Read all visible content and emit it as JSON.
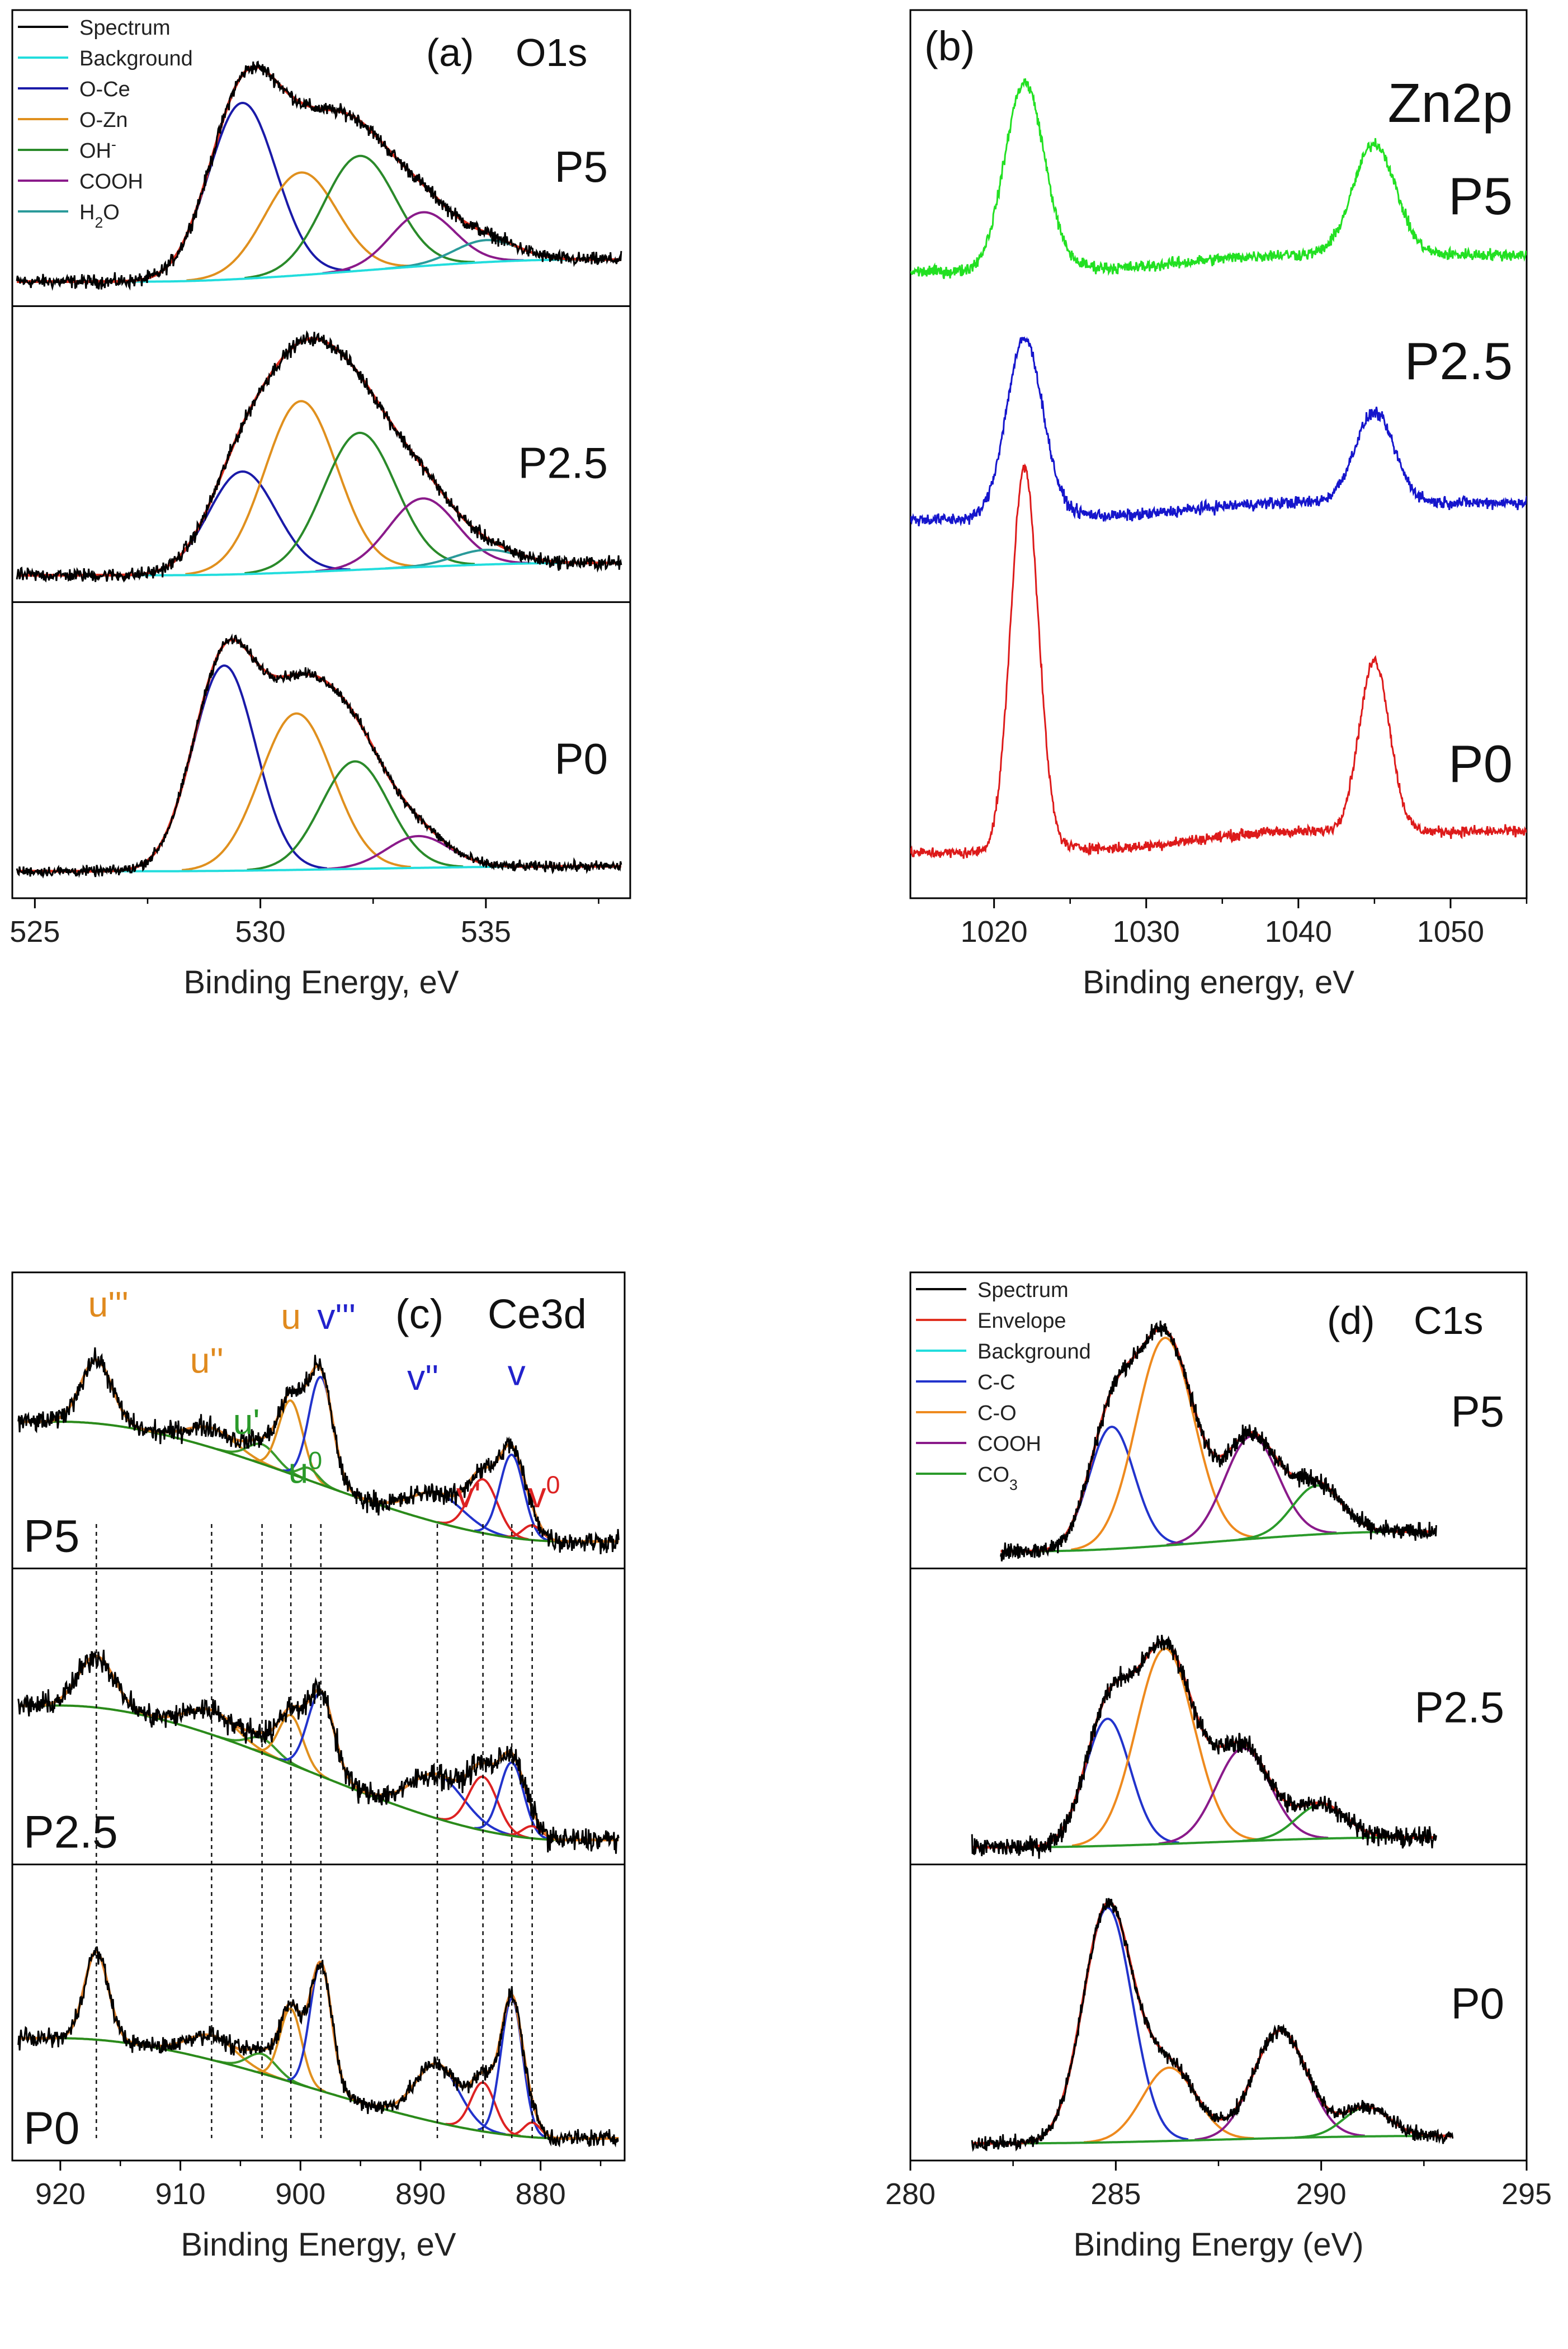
{
  "panels": [
    {
      "id": "a",
      "label": "(a)",
      "element": "O1s",
      "xlabel": "Binding Energy, eV",
      "xlim": [
        524.5,
        538.2
      ],
      "x_reversed": false,
      "ticks": [
        525,
        530,
        535
      ],
      "sub_ylim": [
        0,
        1.12
      ],
      "legend": [
        "Spectrum",
        "Background",
        "O-Ce",
        "O-Zn",
        "OH-",
        "COOH",
        "H2O"
      ],
      "subplots": [
        {
          "sample": "P5",
          "x_range": [
            524.6,
            538.0
          ],
          "noise": 0.02,
          "spectrum": "sum",
          "background": {
            "left": 0.05,
            "right": 0.14,
            "x1": 527.5,
            "x2": 537.0
          },
          "components": [
            {
              "name": "O-Ce",
              "center": 529.6,
              "height": 0.72,
              "width": 0.75
            },
            {
              "name": "O-Zn",
              "center": 530.9,
              "height": 0.42,
              "width": 0.8
            },
            {
              "name": "OH-",
              "center": 532.2,
              "height": 0.47,
              "width": 0.8
            },
            {
              "name": "COOH",
              "center": 533.6,
              "height": 0.22,
              "width": 0.7
            },
            {
              "name": "H2O",
              "center": 535.0,
              "height": 0.09,
              "width": 0.7
            }
          ]
        },
        {
          "sample": "P2.5",
          "x_range": [
            524.6,
            538.0
          ],
          "noise": 0.02,
          "spectrum": "sum",
          "background": {
            "left": 0.06,
            "right": 0.11,
            "x1": 528.0,
            "x2": 537.0
          },
          "components": [
            {
              "name": "O-Ce",
              "center": 529.6,
              "height": 0.42,
              "width": 0.75
            },
            {
              "name": "O-Zn",
              "center": 530.9,
              "height": 0.7,
              "width": 0.8
            },
            {
              "name": "OH-",
              "center": 532.2,
              "height": 0.56,
              "width": 0.8
            },
            {
              "name": "COOH",
              "center": 533.6,
              "height": 0.28,
              "width": 0.75
            },
            {
              "name": "H2O",
              "center": 535.0,
              "height": 0.06,
              "width": 0.7
            }
          ]
        },
        {
          "sample": "P0",
          "x_range": [
            524.6,
            538.0
          ],
          "noise": 0.015,
          "spectrum": "sum",
          "background": {
            "left": 0.06,
            "right": 0.08,
            "x1": 527.5,
            "x2": 537.0
          },
          "components": [
            {
              "name": "O-Ce",
              "center": 529.2,
              "height": 0.84,
              "width": 0.7
            },
            {
              "name": "O-Zn",
              "center": 530.8,
              "height": 0.64,
              "width": 0.8
            },
            {
              "name": "OH-",
              "center": 532.1,
              "height": 0.44,
              "width": 0.75
            },
            {
              "name": "COOH",
              "center": 533.5,
              "height": 0.13,
              "width": 0.7
            }
          ]
        }
      ]
    },
    {
      "id": "b",
      "label": "(b)",
      "element": "Zn2p",
      "xlabel": "Binding energy, eV",
      "xlim": [
        1014.5,
        1055
      ],
      "x_reversed": false,
      "ticks": [
        1020,
        1030,
        1040,
        1050
      ],
      "stack_ylim": [
        0,
        100
      ],
      "legend": [],
      "traces": [
        {
          "sample": "P5",
          "color": "#22e022",
          "baseline": 72,
          "peaks": [
            {
              "center": 1022.0,
              "height": 22,
              "width": 1.3
            },
            {
              "center": 1045.0,
              "height": 13,
              "width": 1.4
            }
          ],
          "noise": 0.5,
          "bg_slope": 2.0
        },
        {
          "sample": "P2.5",
          "color": "#1515cc",
          "baseline": 43,
          "peaks": [
            {
              "center": 1022.0,
              "height": 21,
              "width": 1.2
            },
            {
              "center": 1045.0,
              "height": 10.5,
              "width": 1.3
            }
          ],
          "noise": 0.5,
          "bg_slope": 2.0
        },
        {
          "sample": "P0",
          "color": "#dd1a1a",
          "baseline": 4,
          "peaks": [
            {
              "center": 1022.0,
              "height": 45,
              "width": 0.9
            },
            {
              "center": 1045.0,
              "height": 20,
              "width": 1.0
            }
          ],
          "noise": 0.45,
          "bg_slope": 2.5
        }
      ]
    },
    {
      "id": "c",
      "label": "(c)",
      "element": "Ce3d",
      "xlabel": "Binding Energy, eV",
      "xlim": [
        924,
        873
      ],
      "x_reversed": true,
      "ticks": [
        920,
        910,
        900,
        890,
        880
      ],
      "sub_ylim": [
        0,
        1.12
      ],
      "legend": [],
      "dashed_lines": [
        917.0,
        907.4,
        903.2,
        900.8,
        898.3,
        888.6,
        884.8,
        882.4,
        880.7
      ],
      "peak_labels": [
        {
          "text": "u'''",
          "x": 916.0,
          "y": 0.98,
          "color": "#e08a1e"
        },
        {
          "text": "u''",
          "x": 907.8,
          "y": 0.75,
          "color": "#e08a1e"
        },
        {
          "text": "u",
          "x": 900.8,
          "y": 0.93,
          "color": "#e08a1e"
        },
        {
          "text": "v'''",
          "x": 897.0,
          "y": 0.93,
          "color": "#2222cc"
        },
        {
          "text": "u'",
          "x": 904.5,
          "y": 0.5,
          "color": "#2a9a2a"
        },
        {
          "text": "u0",
          "x": 899.6,
          "y": 0.3,
          "color": "#2a9a2a"
        },
        {
          "text": "v''",
          "x": 889.8,
          "y": 0.68,
          "color": "#2222cc"
        },
        {
          "text": "v",
          "x": 882.0,
          "y": 0.7,
          "color": "#2222cc"
        },
        {
          "text": "v'",
          "x": 886.0,
          "y": 0.2,
          "color": "#dd2222"
        },
        {
          "text": "v0",
          "x": 879.7,
          "y": 0.2,
          "color": "#dd2222"
        }
      ],
      "subplots": [
        {
          "sample": "P5",
          "x_range": [
            923.5,
            873.5
          ],
          "noise": 0.03,
          "spectrum": "sum",
          "background": {
            "left": 0.55,
            "right": 0.06,
            "x1": 920.0,
            "x2": 878.0
          },
          "components": [
            {
              "name": "u'''",
              "center": 917.0,
              "height": 0.26,
              "width": 1.3
            },
            {
              "name": "u''",
              "center": 907.4,
              "height": 0.08,
              "width": 2.0
            },
            {
              "name": "u'",
              "center": 903.2,
              "height": 0.08,
              "width": 1.2
            },
            {
              "name": "u",
              "center": 900.8,
              "height": 0.3,
              "width": 1.0
            },
            {
              "name": "u0",
              "center": 899.3,
              "height": 0.05,
              "width": 0.8
            },
            {
              "name": "v'''",
              "center": 898.3,
              "height": 0.44,
              "width": 1.0
            },
            {
              "name": "v''",
              "center": 888.6,
              "height": 0.12,
              "width": 2.2
            },
            {
              "name": "v'",
              "center": 884.8,
              "height": 0.22,
              "width": 1.2
            },
            {
              "name": "v",
              "center": 882.4,
              "height": 0.34,
              "width": 1.0
            },
            {
              "name": "v0",
              "center": 880.7,
              "height": 0.06,
              "width": 0.8
            }
          ]
        },
        {
          "sample": "P2.5",
          "x_range": [
            923.5,
            873.5
          ],
          "noise": 0.035,
          "spectrum": "sum",
          "background": {
            "left": 0.6,
            "right": 0.05,
            "x1": 920.0,
            "x2": 878.0
          },
          "components": [
            {
              "name": "u'''",
              "center": 917.0,
              "height": 0.21,
              "width": 1.5
            },
            {
              "name": "u''",
              "center": 907.4,
              "height": 0.1,
              "width": 2.0
            },
            {
              "name": "u'",
              "center": 903.2,
              "height": 0.06,
              "width": 1.2
            },
            {
              "name": "u",
              "center": 900.8,
              "height": 0.2,
              "width": 1.0
            },
            {
              "name": "v'''",
              "center": 898.3,
              "height": 0.34,
              "width": 1.1
            },
            {
              "name": "v''",
              "center": 888.6,
              "height": 0.18,
              "width": 2.2
            },
            {
              "name": "v'",
              "center": 884.8,
              "height": 0.22,
              "width": 1.2
            },
            {
              "name": "v",
              "center": 882.4,
              "height": 0.3,
              "width": 1.0
            },
            {
              "name": "v0",
              "center": 880.7,
              "height": 0.05,
              "width": 0.8
            }
          ]
        },
        {
          "sample": "P0",
          "x_range": [
            923.5,
            873.5
          ],
          "noise": 0.025,
          "spectrum": "sum",
          "background": {
            "left": 0.45,
            "right": 0.04,
            "x1": 920.0,
            "x2": 878.0
          },
          "components": [
            {
              "name": "u'''",
              "center": 917.0,
              "height": 0.36,
              "width": 1.0
            },
            {
              "name": "u''",
              "center": 907.4,
              "height": 0.1,
              "width": 2.0
            },
            {
              "name": "u'",
              "center": 903.2,
              "height": 0.08,
              "width": 1.2
            },
            {
              "name": "u",
              "center": 900.8,
              "height": 0.3,
              "width": 0.9
            },
            {
              "name": "v'''",
              "center": 898.3,
              "height": 0.52,
              "width": 0.9
            },
            {
              "name": "v''",
              "center": 888.6,
              "height": 0.24,
              "width": 1.8
            },
            {
              "name": "v'",
              "center": 884.8,
              "height": 0.2,
              "width": 1.0
            },
            {
              "name": "v",
              "center": 882.4,
              "height": 0.56,
              "width": 0.9
            },
            {
              "name": "v0",
              "center": 880.7,
              "height": 0.06,
              "width": 0.7
            }
          ]
        }
      ]
    },
    {
      "id": "d",
      "label": "(d)",
      "element": "C1s",
      "xlabel": "Binding Energy (eV)",
      "xlim": [
        280,
        295
      ],
      "x_reversed": false,
      "ticks": [
        280,
        285,
        290,
        295
      ],
      "sub_ylim": [
        0,
        1.12
      ],
      "legend": [
        "Spectrum",
        "Envelope",
        "Background",
        "C-C",
        "C-O",
        "COOH",
        "CO3"
      ],
      "subplots": [
        {
          "sample": "P5",
          "x_range": [
            282.2,
            292.8
          ],
          "noise": 0.025,
          "spectrum": "sum",
          "background": {
            "left": 0.02,
            "right": 0.1,
            "x1": 283.0,
            "x2": 292.0
          },
          "components": [
            {
              "name": "C-C",
              "center": 284.9,
              "height": 0.5,
              "width": 0.55
            },
            {
              "name": "C-O",
              "center": 286.2,
              "height": 0.85,
              "width": 0.7
            },
            {
              "name": "COOH",
              "center": 288.3,
              "height": 0.42,
              "width": 0.65
            },
            {
              "name": "CO3",
              "center": 289.9,
              "height": 0.2,
              "width": 0.6
            }
          ]
        },
        {
          "sample": "P2.5",
          "x_range": [
            281.5,
            292.8
          ],
          "noise": 0.028,
          "spectrum": "sum",
          "background": {
            "left": 0.02,
            "right": 0.06,
            "x1": 282.5,
            "x2": 292.0
          },
          "components": [
            {
              "name": "C-C",
              "center": 284.8,
              "height": 0.52,
              "width": 0.55
            },
            {
              "name": "C-O",
              "center": 286.2,
              "height": 0.8,
              "width": 0.7
            },
            {
              "name": "COOH",
              "center": 288.1,
              "height": 0.38,
              "width": 0.65
            },
            {
              "name": "CO3",
              "center": 290.0,
              "height": 0.14,
              "width": 0.6
            }
          ]
        },
        {
          "sample": "P0",
          "x_range": [
            281.5,
            293.2
          ],
          "noise": 0.02,
          "spectrum": "sum",
          "background": {
            "left": 0.02,
            "right": 0.05,
            "x1": 282.5,
            "x2": 292.5
          },
          "components": [
            {
              "name": "C-C",
              "center": 284.8,
              "height": 0.96,
              "width": 0.6
            },
            {
              "name": "C-O",
              "center": 286.3,
              "height": 0.3,
              "width": 0.65
            },
            {
              "name": "COOH",
              "center": 289.0,
              "height": 0.44,
              "width": 0.65
            },
            {
              "name": "CO3",
              "center": 291.1,
              "height": 0.12,
              "width": 0.55
            }
          ]
        }
      ]
    }
  ],
  "colors": {
    "Spectrum": "#000000",
    "Envelope": "#e03020",
    "Background": "#22dddd",
    "O-Ce": "#1a1aa8",
    "O-Zn": "#e0901e",
    "OH-": "#2a8a2a",
    "COOH": "#8a1a8a",
    "H2O": "#2a9a9a",
    "C-C": "#2233cc",
    "C-O": "#ee8a1e",
    "CO3": "#2a9a2a",
    "CeBackground": "#2a8a1a",
    "CeU": "#e0901e",
    "CeV": "#2233cc",
    "CeUprime": "#3a9a2a",
    "CeVprime": "#dd2222",
    "CeFit": "#e0802a"
  },
  "chart_data": [
    {
      "type": "line",
      "title": "(a) O1s",
      "xlabel": "Binding Energy, eV",
      "ylabel": "",
      "xlim": [
        524.5,
        538.2
      ],
      "series": [
        {
          "name": "Spectrum",
          "sample": "P5",
          "peak_x": 529.6
        },
        {
          "name": "Spectrum",
          "sample": "P2.5",
          "peak_x": 530.9
        },
        {
          "name": "Spectrum",
          "sample": "P0",
          "peak_x": 529.2
        }
      ],
      "legend": [
        "Spectrum",
        "Background",
        "O-Ce",
        "O-Zn",
        "OH-",
        "COOH",
        "H2O"
      ]
    },
    {
      "type": "line",
      "title": "(b) Zn2p",
      "xlabel": "Binding energy, eV",
      "ylabel": "",
      "xlim": [
        1014.5,
        1055
      ],
      "series": [
        {
          "name": "P5",
          "peaks_x": [
            1022,
            1045
          ]
        },
        {
          "name": "P2.5",
          "peaks_x": [
            1022,
            1045
          ]
        },
        {
          "name": "P0",
          "peaks_x": [
            1022,
            1045
          ]
        }
      ]
    },
    {
      "type": "line",
      "title": "(c) Ce3d",
      "xlabel": "Binding Energy, eV",
      "ylabel": "",
      "xlim": [
        924,
        873
      ],
      "series": [
        {
          "name": "Spectrum",
          "sample": "P5"
        },
        {
          "name": "Spectrum",
          "sample": "P2.5"
        },
        {
          "name": "Spectrum",
          "sample": "P0"
        }
      ],
      "peak_positions": [
        917.0,
        907.4,
        903.2,
        900.8,
        898.3,
        888.6,
        884.8,
        882.4,
        880.7
      ]
    },
    {
      "type": "line",
      "title": "(d) C1s",
      "xlabel": "Binding Energy (eV)",
      "ylabel": "",
      "xlim": [
        280,
        295
      ],
      "series": [
        {
          "name": "Spectrum",
          "sample": "P5"
        },
        {
          "name": "Spectrum",
          "sample": "P2.5"
        },
        {
          "name": "Spectrum",
          "sample": "P0"
        }
      ],
      "legend": [
        "Spectrum",
        "Envelope",
        "Background",
        "C-C",
        "C-O",
        "COOH",
        "CO3"
      ]
    }
  ]
}
